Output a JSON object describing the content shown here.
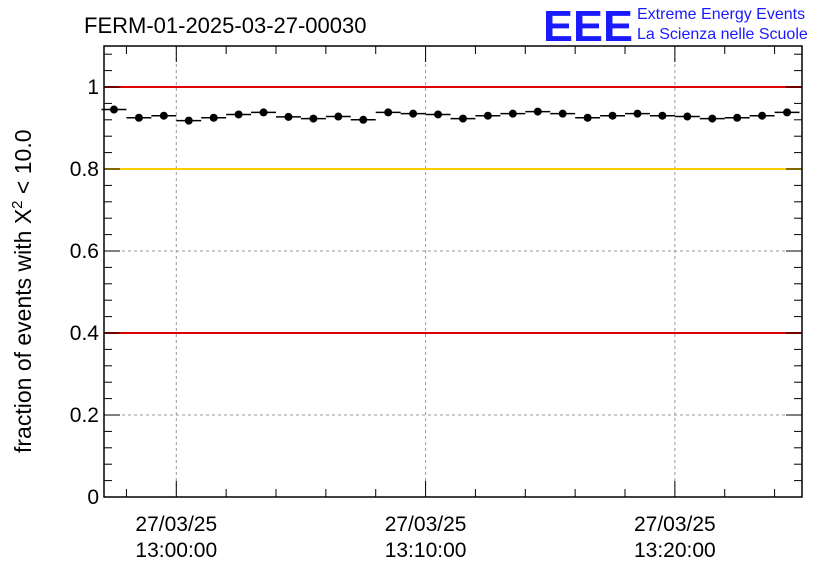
{
  "title": "FERM-01-2025-03-27-00030",
  "logo": {
    "mark": "EEE",
    "line1": "Extreme Energy Events",
    "line2": "La Scienza nelle Scuole",
    "color": "#1a1aff"
  },
  "chart_data": {
    "type": "scatter",
    "title": "FERM-01-2025-03-27-00030",
    "ylabel_prefix": "fraction of events with ",
    "ylabel_symbol": "X",
    "ylabel_superscript": "2",
    "ylabel_suffix": " < 10.0",
    "ylim": [
      0,
      1.1
    ],
    "y_ticks": [
      {
        "value": 0,
        "label": "0"
      },
      {
        "value": 0.2,
        "label": "0.2"
      },
      {
        "value": 0.4,
        "label": "0.4"
      },
      {
        "value": 0.6,
        "label": "0.6"
      },
      {
        "value": 0.8,
        "label": "0.8"
      },
      {
        "value": 1.0,
        "label": "1"
      }
    ],
    "xlim_minutes": [
      -2.9,
      25.1
    ],
    "x_ticks": [
      {
        "minute": 0,
        "date": "27/03/25",
        "time": "13:00:00"
      },
      {
        "minute": 10,
        "date": "27/03/25",
        "time": "13:10:00"
      },
      {
        "minute": 20,
        "date": "27/03/25",
        "time": "13:20:00"
      }
    ],
    "grid": true,
    "reference_lines": [
      {
        "value": 1.0,
        "color": "#e00000"
      },
      {
        "value": 0.8,
        "color": "#ffcc00"
      },
      {
        "value": 0.4,
        "color": "#e00000"
      }
    ],
    "series": [
      {
        "x_minutes": [
          -2.5,
          -1.5,
          -0.5,
          0.5,
          1.5,
          2.5,
          3.5,
          4.5,
          5.5,
          6.5,
          7.5,
          8.5,
          9.5,
          10.5,
          11.5,
          12.5,
          13.5,
          14.5,
          15.5,
          16.5,
          17.5,
          18.5,
          19.5,
          20.5,
          21.5,
          22.5,
          23.5,
          24.5
        ],
        "values": [
          0.945,
          0.925,
          0.93,
          0.918,
          0.925,
          0.933,
          0.938,
          0.927,
          0.923,
          0.928,
          0.92,
          0.938,
          0.935,
          0.933,
          0.923,
          0.93,
          0.935,
          0.94,
          0.935,
          0.925,
          0.93,
          0.935,
          0.93,
          0.928,
          0.923,
          0.925,
          0.93,
          0.938
        ],
        "color": "#000000"
      }
    ]
  }
}
